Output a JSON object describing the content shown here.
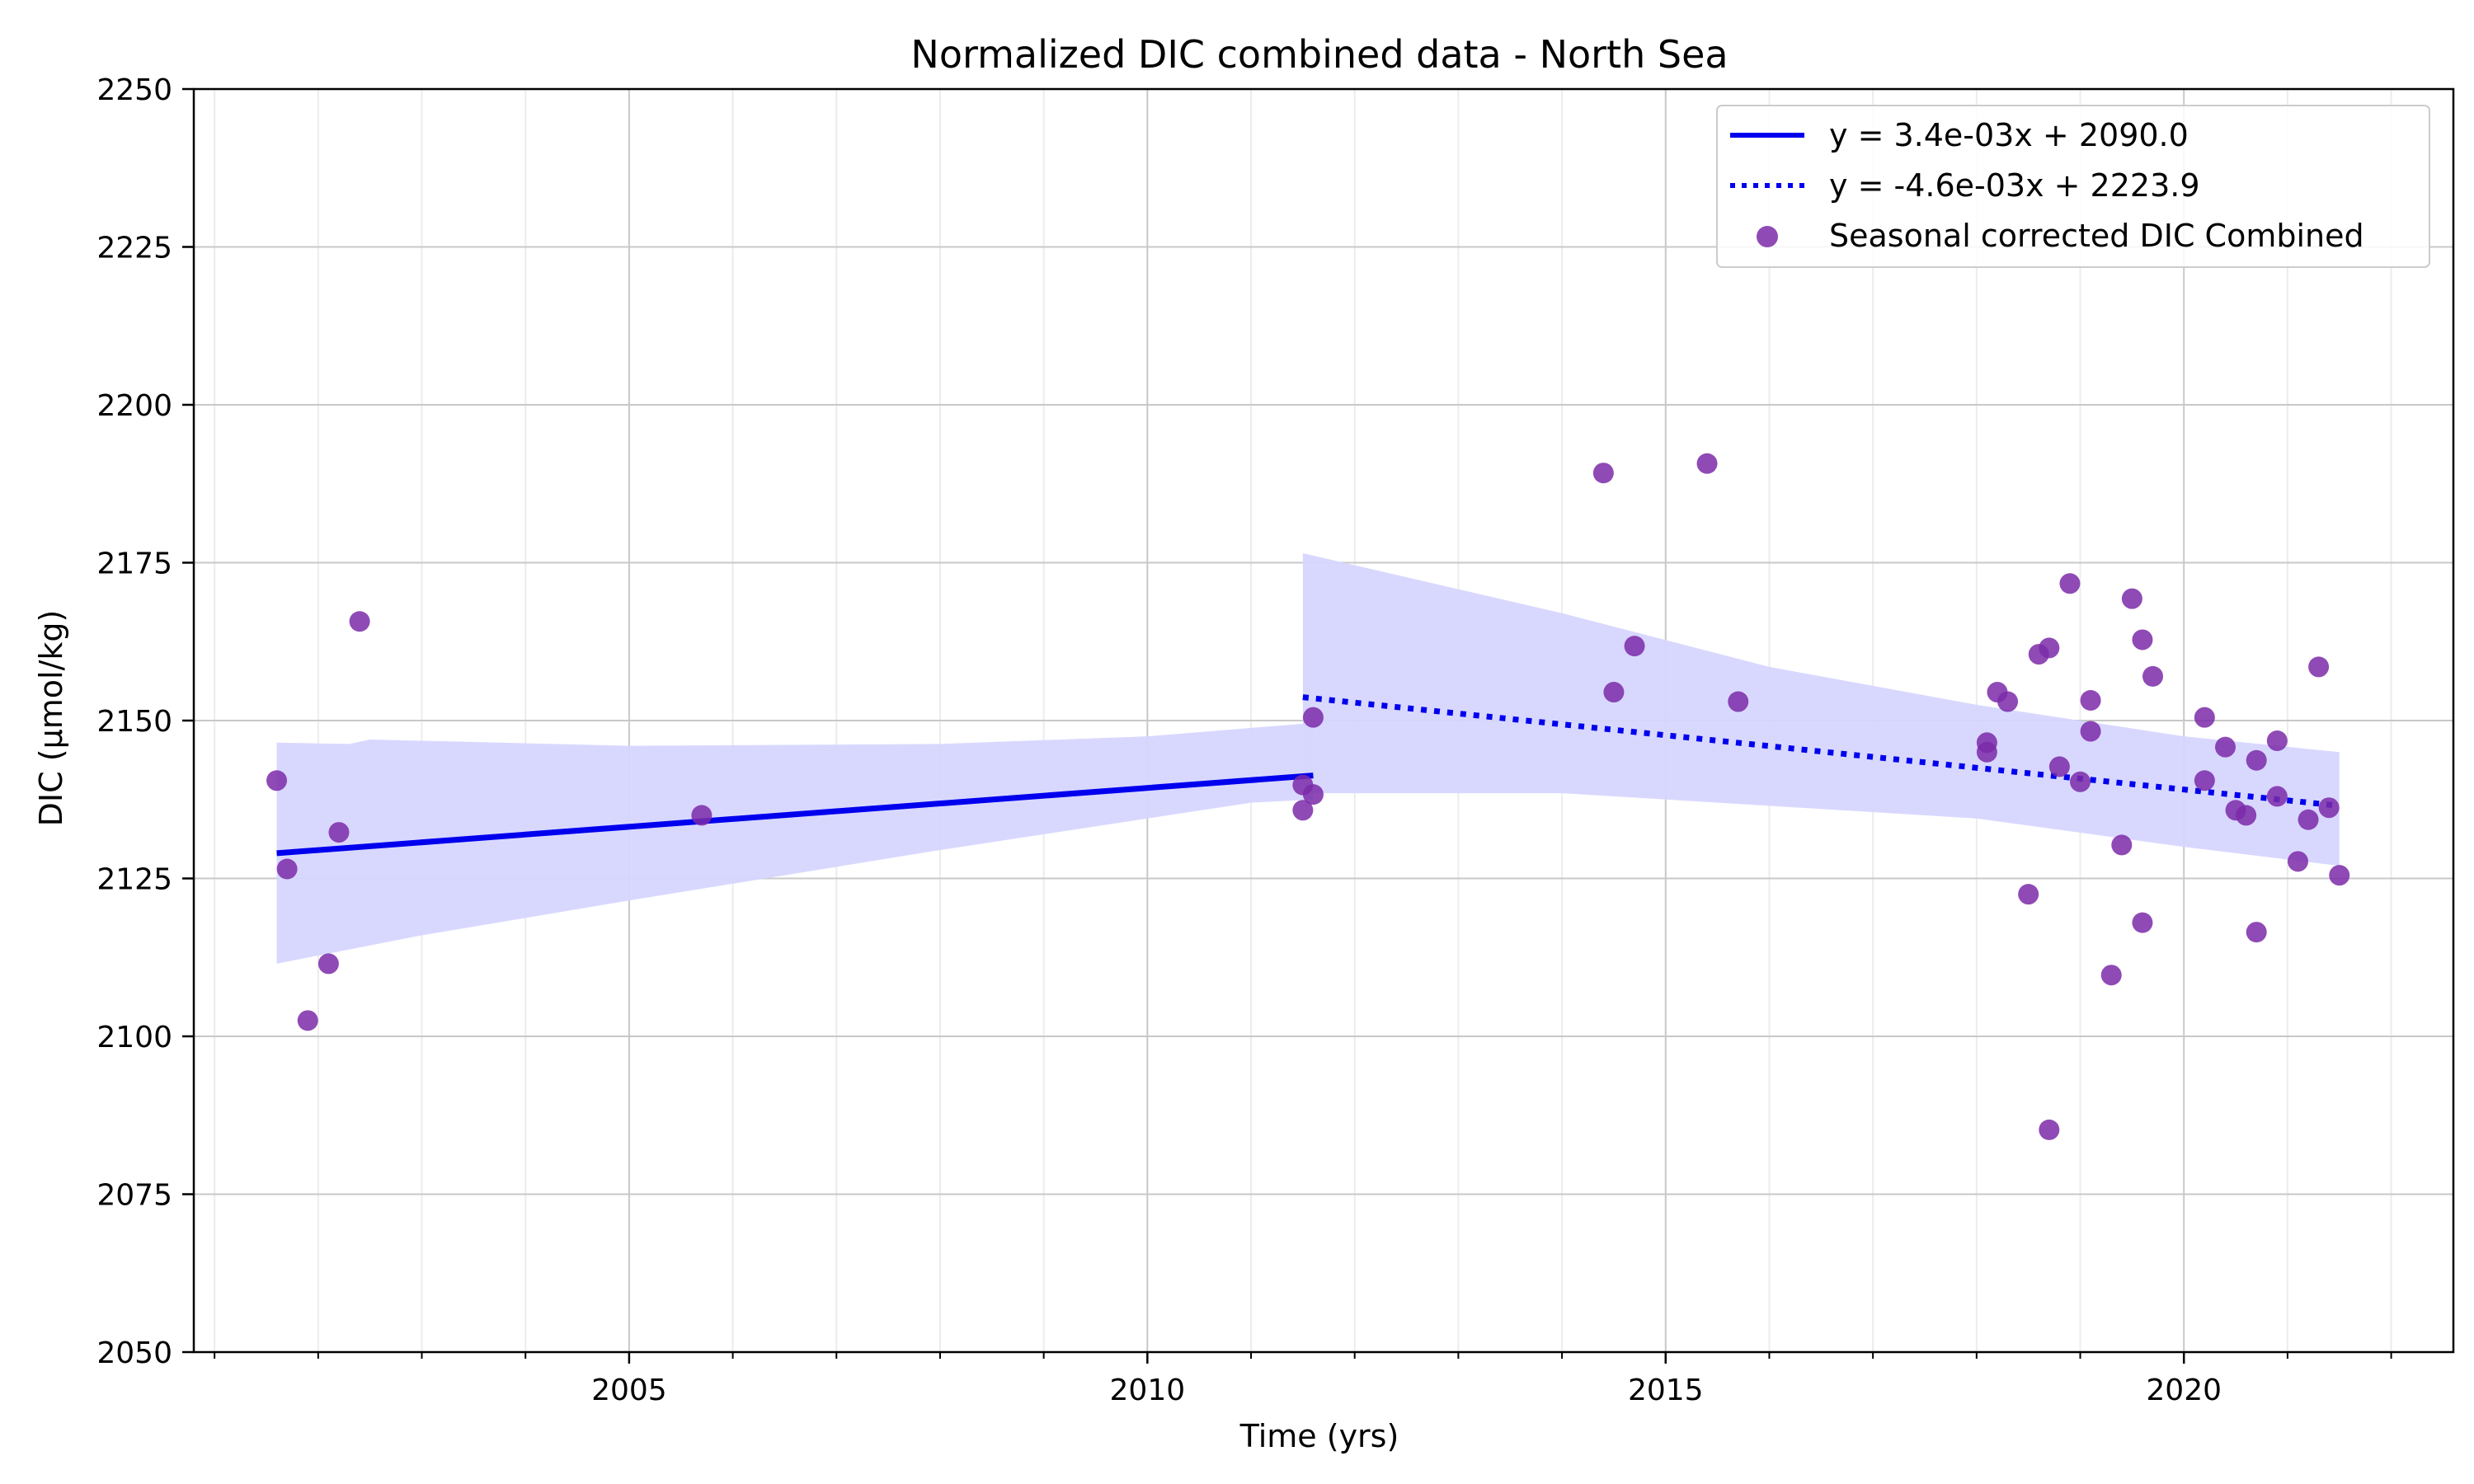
{
  "chart_data": {
    "type": "scatter",
    "title": "Normalized DIC combined data - North Sea",
    "xlabel": "Time (yrs)",
    "ylabel": "DIC (µmol/kg)",
    "xlim": [
      2000.8,
      2022.6
    ],
    "ylim": [
      2050,
      2250
    ],
    "x_ticks": [
      2005,
      2010,
      2015,
      2020
    ],
    "y_ticks": [
      2050,
      2075,
      2100,
      2125,
      2150,
      2175,
      2200,
      2225,
      2250
    ],
    "x_minor_step": 1,
    "grid": true,
    "legend_position": "top-right",
    "colors": {
      "points": "#7b2aa8",
      "trend": "#0000ee",
      "band": "#d6d6ff",
      "grid_major": "#c8c8c8",
      "grid_minor": "#ececec"
    },
    "series": [
      {
        "name": "Seasonal corrected DIC Combined",
        "kind": "scatter",
        "points": [
          [
            2001.6,
            2140.5
          ],
          [
            2001.7,
            2126.5
          ],
          [
            2001.9,
            2102.5
          ],
          [
            2002.1,
            2111.5
          ],
          [
            2002.2,
            2132.3
          ],
          [
            2002.4,
            2165.7
          ],
          [
            2005.7,
            2135.0
          ],
          [
            2011.5,
            2139.8
          ],
          [
            2011.5,
            2135.8
          ],
          [
            2011.6,
            2150.5
          ],
          [
            2011.6,
            2138.3
          ],
          [
            2014.4,
            2189.2
          ],
          [
            2014.5,
            2154.5
          ],
          [
            2014.7,
            2161.8
          ],
          [
            2015.4,
            2190.7
          ],
          [
            2015.7,
            2153.0
          ],
          [
            2018.1,
            2145.0
          ],
          [
            2018.1,
            2146.5
          ],
          [
            2018.2,
            2154.5
          ],
          [
            2018.3,
            2153.0
          ],
          [
            2018.5,
            2122.5
          ],
          [
            2018.6,
            2160.5
          ],
          [
            2018.7,
            2085.2
          ],
          [
            2018.7,
            2161.5
          ],
          [
            2018.8,
            2142.7
          ],
          [
            2018.9,
            2171.7
          ],
          [
            2019.0,
            2140.3
          ],
          [
            2019.1,
            2148.3
          ],
          [
            2019.1,
            2153.2
          ],
          [
            2019.3,
            2109.7
          ],
          [
            2019.4,
            2130.3
          ],
          [
            2019.5,
            2169.3
          ],
          [
            2019.6,
            2118.0
          ],
          [
            2019.6,
            2162.8
          ],
          [
            2019.7,
            2157.0
          ],
          [
            2020.2,
            2150.5
          ],
          [
            2020.2,
            2140.5
          ],
          [
            2020.4,
            2145.8
          ],
          [
            2020.5,
            2135.8
          ],
          [
            2020.6,
            2135.0
          ],
          [
            2020.7,
            2143.7
          ],
          [
            2020.7,
            2116.5
          ],
          [
            2020.9,
            2138.0
          ],
          [
            2020.9,
            2146.8
          ],
          [
            2021.1,
            2127.7
          ],
          [
            2021.2,
            2134.3
          ],
          [
            2021.3,
            2158.5
          ],
          [
            2021.4,
            2136.2
          ],
          [
            2021.5,
            2125.5
          ]
        ]
      },
      {
        "name": "y = 3.4e-03x + 2090.0",
        "kind": "line",
        "style": "solid",
        "points": [
          [
            2001.6,
            2129.0
          ],
          [
            2011.6,
            2141.3
          ]
        ],
        "band_upper": [
          [
            2001.6,
            2146.5
          ],
          [
            2002.3,
            2146.3
          ],
          [
            2002.5,
            2147.0
          ],
          [
            2005.0,
            2146.0
          ],
          [
            2008.0,
            2146.3
          ],
          [
            2010.0,
            2147.5
          ],
          [
            2011.5,
            2149.5
          ],
          [
            2011.6,
            2150.0
          ]
        ],
        "band_lower": [
          [
            2011.6,
            2137.5
          ],
          [
            2011.0,
            2137.0
          ],
          [
            2010.0,
            2134.5
          ],
          [
            2008.0,
            2129.5
          ],
          [
            2005.0,
            2121.5
          ],
          [
            2003.0,
            2116.0
          ],
          [
            2001.6,
            2111.5
          ]
        ]
      },
      {
        "name": "y = -4.6e-03x + 2223.9",
        "kind": "line",
        "style": "dotted",
        "points": [
          [
            2011.5,
            2153.7
          ],
          [
            2021.5,
            2136.5
          ]
        ],
        "band_upper": [
          [
            2011.5,
            2176.5
          ],
          [
            2014.0,
            2167.0
          ],
          [
            2016.0,
            2158.5
          ],
          [
            2018.0,
            2152.5
          ],
          [
            2020.0,
            2147.5
          ],
          [
            2021.5,
            2145.0
          ]
        ],
        "band_lower": [
          [
            2021.5,
            2127.0
          ],
          [
            2020.0,
            2130.0
          ],
          [
            2018.0,
            2134.5
          ],
          [
            2016.0,
            2136.5
          ],
          [
            2014.0,
            2138.5
          ],
          [
            2011.5,
            2138.5
          ]
        ]
      }
    ]
  }
}
